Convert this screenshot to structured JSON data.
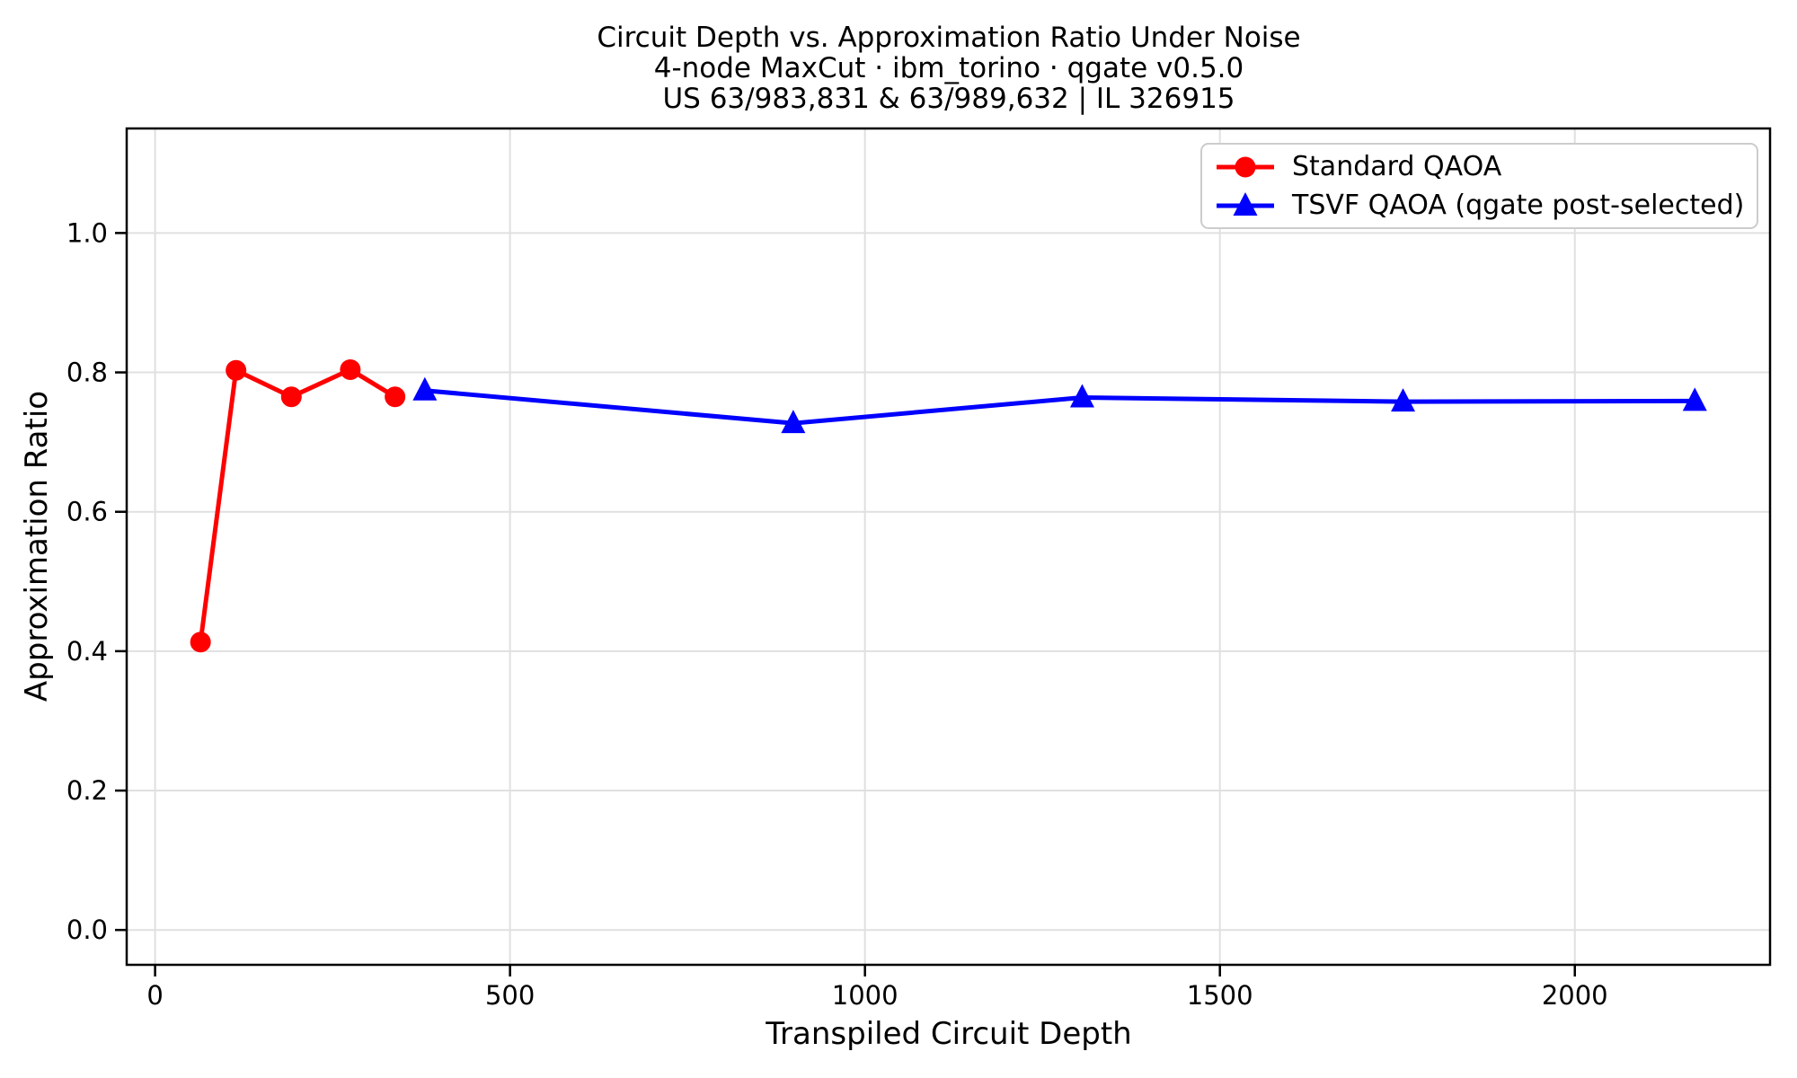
{
  "chart_data": {
    "type": "line",
    "title": "Circuit Depth vs. Approximation Ratio Under Noise",
    "subtitle": "4-node MaxCut · ibm_torino · qgate v0.5.0",
    "patent_line": "US 63/983,831 & 63/989,632 | IL 326915",
    "xlabel": "Transpiled Circuit Depth",
    "ylabel": "Approximation Ratio",
    "xlim": [
      -40,
      2275
    ],
    "ylim": [
      -0.05,
      1.15
    ],
    "xtick_values": [
      0,
      500,
      1000,
      1500,
      2000
    ],
    "xtick_labels": [
      "0",
      "500",
      "1000",
      "1500",
      "2000"
    ],
    "ytick_values": [
      0.0,
      0.2,
      0.4,
      0.6,
      0.8,
      1.0
    ],
    "ytick_labels": [
      "0.0",
      "0.2",
      "0.4",
      "0.6",
      "0.8",
      "1.0"
    ],
    "grid": true,
    "grid_color": "#e0e0e0",
    "spine_color": "#000000",
    "background_color": "#ffffff",
    "legend_position": "upper right",
    "series": [
      {
        "name": "Standard QAOA",
        "color": "#ff0000",
        "marker": "circle",
        "x": [
          64,
          114,
          192,
          275,
          338
        ],
        "y": [
          0.413,
          0.803,
          0.765,
          0.804,
          0.765
        ]
      },
      {
        "name": "TSVF QAOA (qgate post-selected)",
        "color": "#0000ff",
        "marker": "triangle",
        "x": [
          380,
          899,
          1306,
          1758,
          2169
        ],
        "y": [
          0.774,
          0.727,
          0.764,
          0.758,
          0.759
        ]
      }
    ]
  }
}
